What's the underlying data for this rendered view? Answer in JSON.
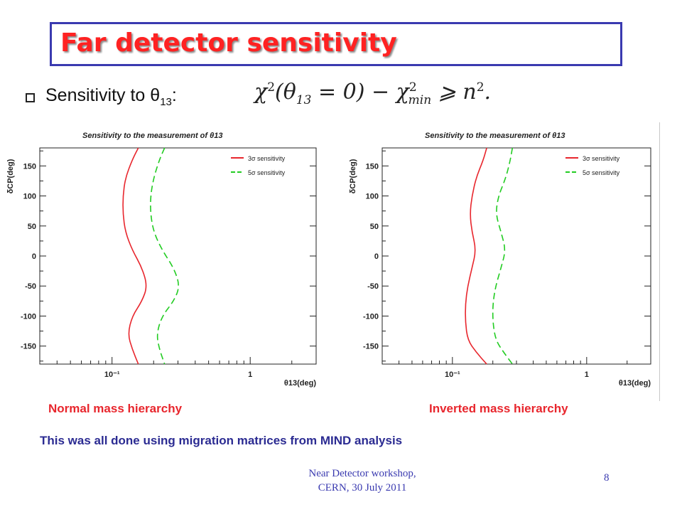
{
  "slide": {
    "title": "Far detector sensitivity",
    "bullet_text": "Sensitivity to θ",
    "bullet_sub": "13",
    "bullet_colon": ":",
    "formula_main": "χ",
    "formula_sup": "2",
    "formula_rest": "(θ",
    "formula_sub13": "13",
    "formula_eq": " = 0) − χ",
    "formula_sup2": "2",
    "formula_submin": "min",
    "formula_tail": " ⩾ n",
    "formula_sup3": "2",
    "formula_dot": ".",
    "caption_left": "Normal mass hierarchy",
    "caption_right": "Inverted mass hierarchy",
    "note": "This was all done using migration matrices from MIND analysis",
    "footer_line1": "Near Detector workshop,",
    "footer_line2": "CERN, 30 July 2011",
    "page_number": "8"
  },
  "chart_data": [
    {
      "type": "line",
      "title": "Sensitivity to the measurement of θ13",
      "xlabel": "θ13(deg)",
      "ylabel": "δCP(deg)",
      "x_scale": "log",
      "xlim": [
        0.03,
        3
      ],
      "ylim": [
        -180,
        180
      ],
      "x_tick_labels": [
        "10⁻¹",
        "1"
      ],
      "y_ticks": [
        150,
        100,
        50,
        0,
        -50,
        -100,
        -150
      ],
      "legend_position": "top-right",
      "series": [
        {
          "name": "3σ sensitivity",
          "color": "#e8262d",
          "style": "solid",
          "points": [
            [
              0.155,
              180
            ],
            [
              0.14,
              160
            ],
            [
              0.125,
              130
            ],
            [
              0.12,
              100
            ],
            [
              0.12,
              70
            ],
            [
              0.125,
              40
            ],
            [
              0.14,
              10
            ],
            [
              0.165,
              -20
            ],
            [
              0.18,
              -50
            ],
            [
              0.165,
              -75
            ],
            [
              0.14,
              -100
            ],
            [
              0.13,
              -130
            ],
            [
              0.14,
              -155
            ],
            [
              0.155,
              -180
            ]
          ]
        },
        {
          "name": "5σ sensitivity",
          "color": "#22cc22",
          "style": "dashed",
          "points": [
            [
              0.24,
              180
            ],
            [
              0.22,
              160
            ],
            [
              0.2,
              130
            ],
            [
              0.19,
              100
            ],
            [
              0.19,
              70
            ],
            [
              0.2,
              40
            ],
            [
              0.23,
              10
            ],
            [
              0.28,
              -20
            ],
            [
              0.31,
              -50
            ],
            [
              0.28,
              -75
            ],
            [
              0.23,
              -100
            ],
            [
              0.21,
              -130
            ],
            [
              0.22,
              -155
            ],
            [
              0.24,
              -180
            ]
          ]
        }
      ]
    },
    {
      "type": "line",
      "title": "Sensitivity to the measurement of θ13",
      "xlabel": "θ13(deg)",
      "ylabel": "δCP(deg)",
      "x_scale": "log",
      "xlim": [
        0.03,
        3
      ],
      "ylim": [
        -180,
        180
      ],
      "x_tick_labels": [
        "10⁻¹",
        "1"
      ],
      "y_ticks": [
        150,
        100,
        50,
        0,
        -50,
        -100,
        -150
      ],
      "legend_position": "top-right",
      "series": [
        {
          "name": "3σ sensitivity",
          "color": "#e8262d",
          "style": "solid",
          "points": [
            [
              0.18,
              180
            ],
            [
              0.17,
              160
            ],
            [
              0.15,
              130
            ],
            [
              0.14,
              100
            ],
            [
              0.135,
              70
            ],
            [
              0.14,
              40
            ],
            [
              0.15,
              10
            ],
            [
              0.14,
              -20
            ],
            [
              0.13,
              -50
            ],
            [
              0.125,
              -80
            ],
            [
              0.125,
              -110
            ],
            [
              0.13,
              -140
            ],
            [
              0.15,
              -160
            ],
            [
              0.18,
              -180
            ]
          ]
        },
        {
          "name": "5σ sensitivity",
          "color": "#22cc22",
          "style": "dashed",
          "points": [
            [
              0.28,
              180
            ],
            [
              0.27,
              160
            ],
            [
              0.25,
              130
            ],
            [
              0.22,
              100
            ],
            [
              0.21,
              70
            ],
            [
              0.23,
              40
            ],
            [
              0.25,
              10
            ],
            [
              0.23,
              -20
            ],
            [
              0.21,
              -50
            ],
            [
              0.2,
              -80
            ],
            [
              0.2,
              -110
            ],
            [
              0.21,
              -140
            ],
            [
              0.24,
              -160
            ],
            [
              0.28,
              -180
            ]
          ]
        }
      ]
    }
  ]
}
